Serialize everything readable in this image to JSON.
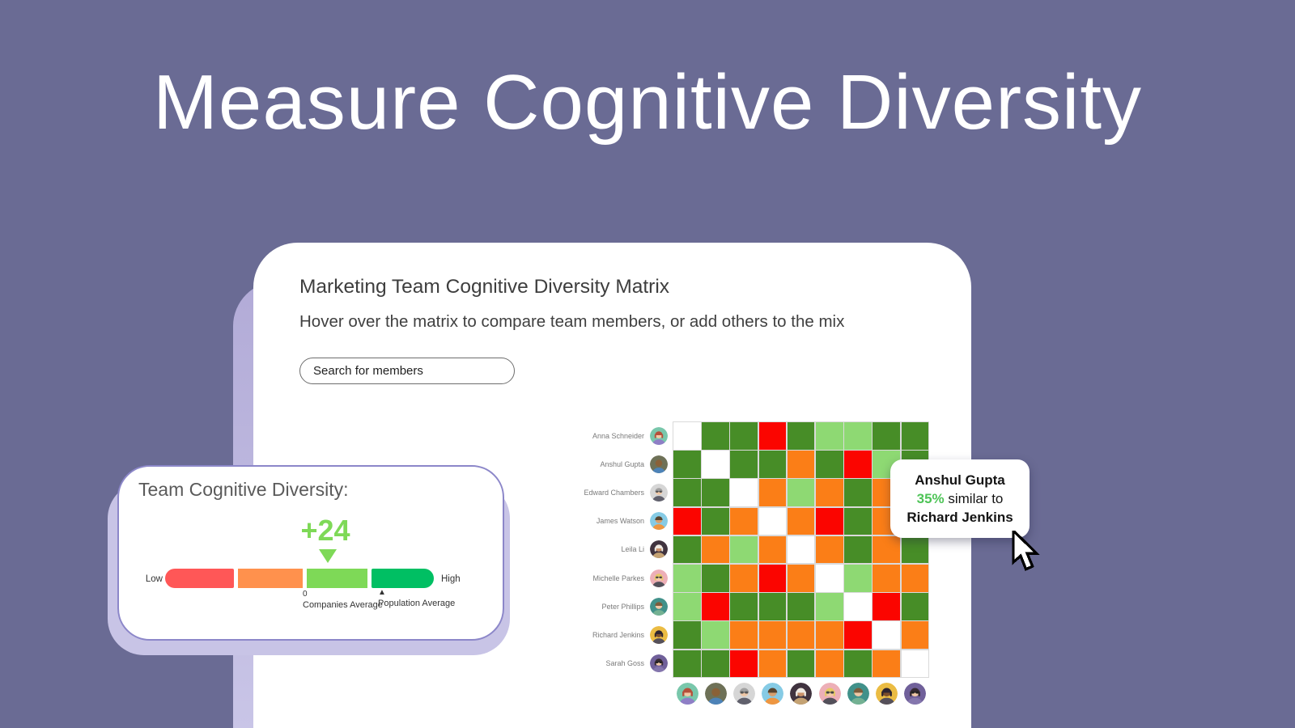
{
  "page": {
    "title": "Measure Cognitive Diversity"
  },
  "main_card": {
    "title": "Marketing Team Cognitive Diversity Matrix",
    "subtitle": "Hover over the matrix to compare team members, or add others to the mix",
    "search_placeholder": "Search for members"
  },
  "matrix": {
    "palette": {
      "W": "#FFFFFF",
      "G": "#478D27",
      "L": "#8ED973",
      "O": "#FB7E17",
      "R": "#FB0500"
    },
    "members": [
      {
        "name": "Anna Schneider",
        "avatar": {
          "bg": "#79C7AB",
          "skin": "#F3C9A5",
          "hair": "#B5503A",
          "shirt": "#8F7FC6",
          "long_hair": true
        }
      },
      {
        "name": "Anshul Gupta",
        "avatar": {
          "bg": "#6E7157",
          "skin": "#8A6138",
          "hair": null,
          "shirt": "#4D83B8"
        }
      },
      {
        "name": "Edward Chambers",
        "avatar": {
          "bg": "#D6D6D6",
          "skin": "#EFC7A6",
          "hair": "#A0A0A0",
          "shirt": "#60606C",
          "glasses": "#555555"
        }
      },
      {
        "name": "James Watson",
        "avatar": {
          "bg": "#86CBE5",
          "skin": "#D7A06E",
          "hair": "#57442F",
          "shirt": "#EE9641"
        }
      },
      {
        "name": "Leila Li",
        "avatar": {
          "bg": "#40333F",
          "skin": "#C9916A",
          "hair": "#EFEAE2",
          "shirt": "#C4A273",
          "long_hair": true
        }
      },
      {
        "name": "Michelle Parkes",
        "avatar": {
          "bg": "#EDAFB7",
          "skin": "#F3C9A5",
          "hair": "#E5C965",
          "shirt": "#53505A",
          "glasses": "#444444",
          "long_hair": true
        }
      },
      {
        "name": "Peter Phillips",
        "avatar": {
          "bg": "#41918A",
          "skin": "#F0C8A6",
          "hair": "#7B5C3C",
          "shirt": "#74B193"
        }
      },
      {
        "name": "Richard Jenkins",
        "avatar": {
          "bg": "#EBBC43",
          "skin": "#7C4E2B",
          "hair": "#2E2530",
          "shirt": "#55505A",
          "long_hair": true
        }
      },
      {
        "name": "Sarah Goss",
        "avatar": {
          "bg": "#70609A",
          "skin": "#F0C8A6",
          "hair": "#362A33",
          "shirt": "#8476AD",
          "glasses": "#222222",
          "long_hair": true
        }
      }
    ],
    "cells": [
      [
        "W",
        "G",
        "G",
        "R",
        "G",
        "L",
        "L",
        "G",
        "G"
      ],
      [
        "G",
        "W",
        "G",
        "G",
        "O",
        "G",
        "R",
        "L",
        "G"
      ],
      [
        "G",
        "G",
        "W",
        "O",
        "L",
        "O",
        "G",
        "O",
        "R"
      ],
      [
        "R",
        "G",
        "O",
        "W",
        "O",
        "R",
        "G",
        "O",
        "O"
      ],
      [
        "G",
        "O",
        "L",
        "O",
        "W",
        "O",
        "G",
        "O",
        "G"
      ],
      [
        "L",
        "G",
        "O",
        "R",
        "O",
        "W",
        "L",
        "O",
        "O"
      ],
      [
        "L",
        "R",
        "G",
        "G",
        "G",
        "L",
        "W",
        "R",
        "G"
      ],
      [
        "G",
        "L",
        "O",
        "O",
        "O",
        "O",
        "R",
        "W",
        "O"
      ],
      [
        "G",
        "G",
        "R",
        "O",
        "G",
        "O",
        "G",
        "O",
        "W"
      ]
    ]
  },
  "tooltip": {
    "member": "Anshul Gupta",
    "percent": "35%",
    "connector": " similar to",
    "target": "Richard Jenkins"
  },
  "score_card": {
    "title": "Team Cognitive Diversity:",
    "score": "+24",
    "low_label": "Low",
    "high_label": "High",
    "zero_tick": "0",
    "companies_label": "Companies Average",
    "population_tick": "▲",
    "population_label": "Population Average",
    "segments": [
      "#FF5757",
      "#FF914D",
      "#7ED957",
      "#00BF63"
    ],
    "marker_color": "#7ED957"
  }
}
